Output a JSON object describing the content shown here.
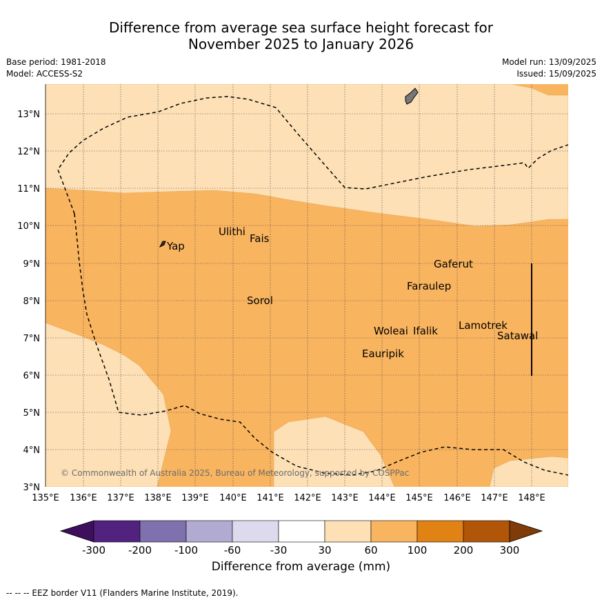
{
  "title_line1": "Difference from average sea surface height forecast for",
  "title_line2": "November 2025 to January 2026",
  "base_period": "Base period: 1981-2018",
  "model": "Model: ACCESS-S2",
  "model_run": "Model run: 13/09/2025",
  "issued": "Issued: 15/09/2025",
  "copyright": "© Commonwealth of Australia 2025, Bureau of Meteorology, supported by COSPPac",
  "map": {
    "lon_labels": [
      "135°E",
      "136°E",
      "137°E",
      "138°E",
      "139°E",
      "140°E",
      "141°E",
      "142°E",
      "143°E",
      "144°E",
      "145°E",
      "146°E",
      "147°E",
      "148°E"
    ],
    "lat_labels": [
      "3°N",
      "4°N",
      "5°N",
      "6°N",
      "7°N",
      "8°N",
      "9°N",
      "10°N",
      "11°N",
      "12°N",
      "13°N"
    ],
    "places": [
      "Yap",
      "Ulithi",
      "Fais",
      "Sorol",
      "Gaferut",
      "Faraulep",
      "Woleai",
      "Ifalik",
      "Lamotrek",
      "Satawal",
      "Eauripik"
    ]
  },
  "colorbar": {
    "title": "Difference from average (mm)",
    "tick_labels": [
      "-300",
      "-200",
      "-100",
      "-60",
      "-30",
      "30",
      "60",
      "100",
      "200",
      "300"
    ],
    "colors": [
      "#3d0f5c",
      "#52227f",
      "#7e71ad",
      "#b1aad1",
      "#dcdaec",
      "#ffffff",
      "#fde0b6",
      "#f9b45f",
      "#e08214",
      "#b15508",
      "#7f3b08"
    ]
  },
  "footnote": "-- -- -- EEZ border V11 (Flanders Marine Institute, 2019)."
}
